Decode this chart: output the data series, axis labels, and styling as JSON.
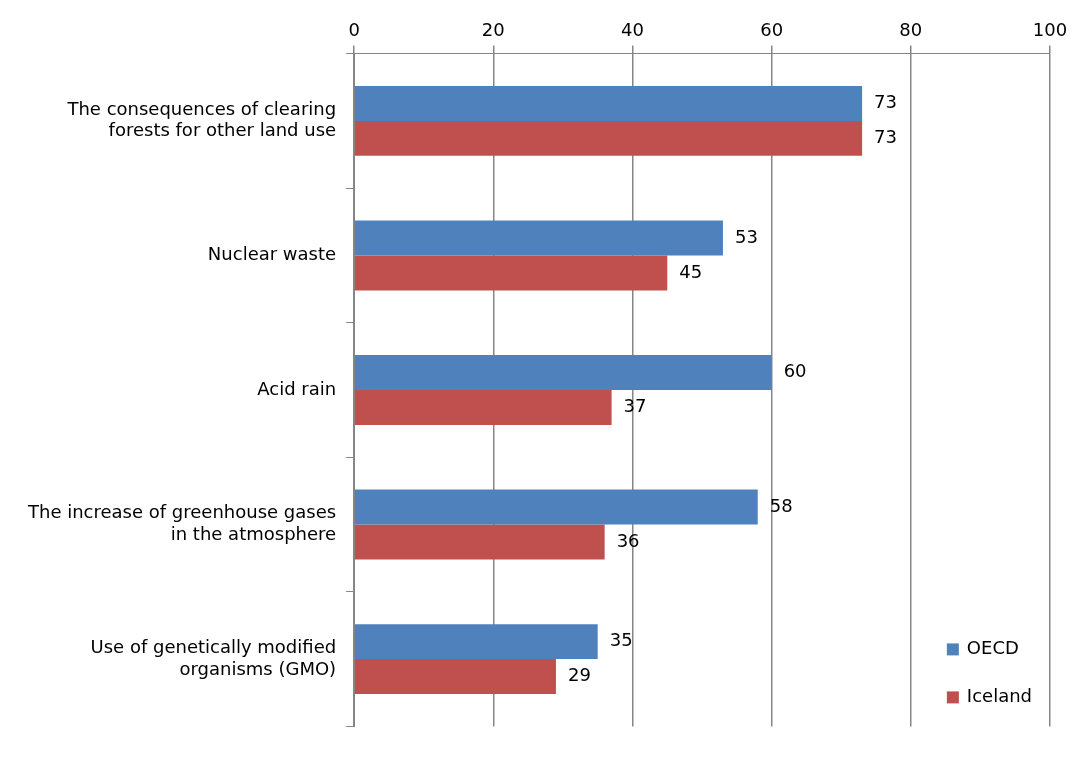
{
  "chart_data": {
    "type": "bar",
    "orientation": "horizontal",
    "categories": [
      "The consequences of clearing forests for other land use",
      "Nuclear waste",
      "Acid rain",
      "The increase of greenhouse gases in the atmosphere",
      "Use of genetically modified organisms (GMO)"
    ],
    "series": [
      {
        "name": "OECD",
        "color": "#4f81bd",
        "values": [
          73,
          53,
          60,
          58,
          35
        ]
      },
      {
        "name": "Iceland",
        "color": "#c0504d",
        "values": [
          73,
          45,
          37,
          36,
          29
        ]
      }
    ],
    "xlim": [
      0,
      100
    ],
    "xticks": [
      0,
      20,
      40,
      60,
      80,
      100
    ],
    "grid": "x",
    "legend": "bottom right",
    "data_labels": true
  }
}
